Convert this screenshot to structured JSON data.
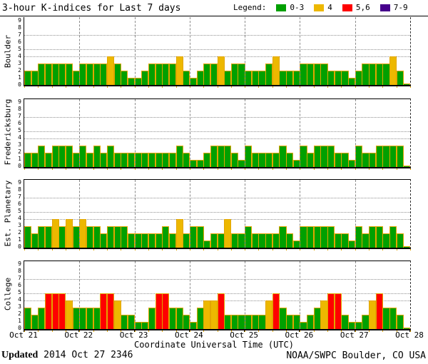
{
  "header": {
    "title": "3-hour K-indices for Last 7 days",
    "legend_label": "Legend:",
    "legend": [
      {
        "label": "0-3",
        "color": "#00a000"
      },
      {
        "label": "4",
        "color": "#edb800"
      },
      {
        "label": "5,6",
        "color": "#fe0000"
      },
      {
        "label": "7-9",
        "color": "#46008c"
      }
    ]
  },
  "chart_data": {
    "type": "bar",
    "title": "3-hour K-indices for Last 7 days",
    "xlabel": "Coordinate Universal Time (UTC)",
    "x_tick_labels": [
      "Oct 21",
      "Oct 22",
      "Oct 23",
      "Oct 24",
      "Oct 25",
      "Oct 26",
      "Oct 27",
      "Oct 28"
    ],
    "bars_per_day": 8,
    "ylim": [
      0,
      9
    ],
    "y_tick_labels": [
      0,
      1,
      2,
      3,
      4,
      5,
      6,
      7,
      8,
      9
    ],
    "gridlines_y": [
      4,
      5,
      7
    ],
    "legend_position": "top-right",
    "color_thresholds": {
      "0-3": "#00a000",
      "4": "#edb800",
      "5,6": "#fe0000",
      "7-9": "#46008c"
    },
    "bar_outline_color": "#e2a500",
    "panels": [
      {
        "station": "Boulder",
        "values": [
          2,
          2,
          3,
          3,
          3,
          3,
          3,
          2,
          3,
          3,
          3,
          3,
          4,
          3,
          2,
          1,
          1,
          2,
          3,
          3,
          3,
          3,
          4,
          2,
          1,
          2,
          3,
          3,
          4,
          2,
          3,
          3,
          2,
          2,
          2,
          3,
          4,
          2,
          2,
          2,
          3,
          3,
          3,
          3,
          2,
          2,
          2,
          1,
          2,
          3,
          3,
          3,
          3,
          4,
          2,
          0
        ]
      },
      {
        "station": "Fredericksburg",
        "values": [
          2,
          2,
          3,
          2,
          3,
          3,
          3,
          2,
          3,
          2,
          3,
          2,
          3,
          2,
          2,
          2,
          2,
          2,
          2,
          2,
          2,
          2,
          3,
          2,
          1,
          1,
          2,
          3,
          3,
          3,
          2,
          1,
          3,
          2,
          2,
          2,
          2,
          3,
          2,
          1,
          3,
          2,
          3,
          3,
          3,
          2,
          2,
          1,
          3,
          2,
          2,
          3,
          3,
          3,
          3,
          0
        ]
      },
      {
        "station": "Est. Planetary",
        "values": [
          3,
          2,
          3,
          3,
          4,
          3,
          4,
          3,
          4,
          3,
          3,
          2,
          3,
          3,
          3,
          2,
          2,
          2,
          2,
          2,
          3,
          2,
          4,
          2,
          3,
          3,
          1,
          2,
          2,
          4,
          2,
          2,
          3,
          2,
          2,
          2,
          2,
          3,
          2,
          1,
          3,
          3,
          3,
          3,
          3,
          2,
          2,
          1,
          3,
          2,
          3,
          3,
          2,
          3,
          2,
          0
        ]
      },
      {
        "station": "College",
        "values": [
          3,
          2,
          3,
          5,
          5,
          5,
          4,
          3,
          3,
          3,
          3,
          5,
          5,
          4,
          2,
          2,
          1,
          1,
          3,
          5,
          5,
          3,
          3,
          2,
          1,
          3,
          4,
          4,
          5,
          2,
          2,
          2,
          2,
          2,
          2,
          4,
          5,
          3,
          2,
          2,
          1,
          2,
          3,
          4,
          5,
          5,
          2,
          1,
          1,
          2,
          4,
          5,
          3,
          3,
          2,
          0
        ]
      }
    ]
  },
  "footer": {
    "updated_label": "Updated",
    "updated_value": " 2014 Oct 27 2346",
    "credit": "NOAA/SWPC Boulder, CO USA"
  }
}
